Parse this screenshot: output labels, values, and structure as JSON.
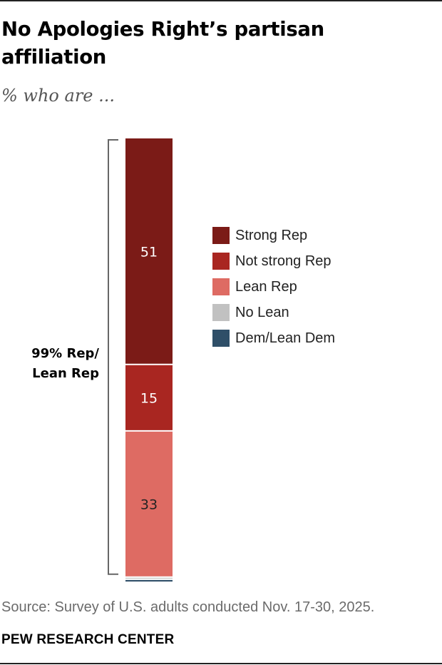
{
  "header": {
    "title": "No Apologies Right’s partisan affiliation",
    "subtitle": "% who are ..."
  },
  "chart_data": {
    "type": "bar",
    "stacked": true,
    "orientation": "vertical",
    "categories": [
      ""
    ],
    "series": [
      {
        "name": "Strong Rep",
        "values": [
          51
        ],
        "color": "#7b1b17",
        "label": "51",
        "label_color": "#ffffff"
      },
      {
        "name": "Not strong Rep",
        "values": [
          15
        ],
        "color": "#a92621",
        "label": "15",
        "label_color": "#ffffff"
      },
      {
        "name": "Lean Rep",
        "values": [
          33
        ],
        "color": "#de6b63",
        "label": "33",
        "label_color": "#222222"
      },
      {
        "name": "No Lean",
        "values": [
          0.5
        ],
        "color": "#c1c1c1",
        "label": ""
      },
      {
        "name": "Dem/Lean Dem",
        "values": [
          0.5
        ],
        "color": "#2f4f68",
        "label": ""
      }
    ],
    "bracket_label": [
      "99% Rep/",
      "Lean Rep"
    ],
    "legend_position": "right",
    "grid": false
  },
  "footer": {
    "source": "Source: Survey of U.S. adults conducted Nov. 17-30, 2025.",
    "org": "PEW RESEARCH CENTER"
  },
  "colors": {
    "bracket": "#666666",
    "segment_divider": "#ffffff"
  }
}
